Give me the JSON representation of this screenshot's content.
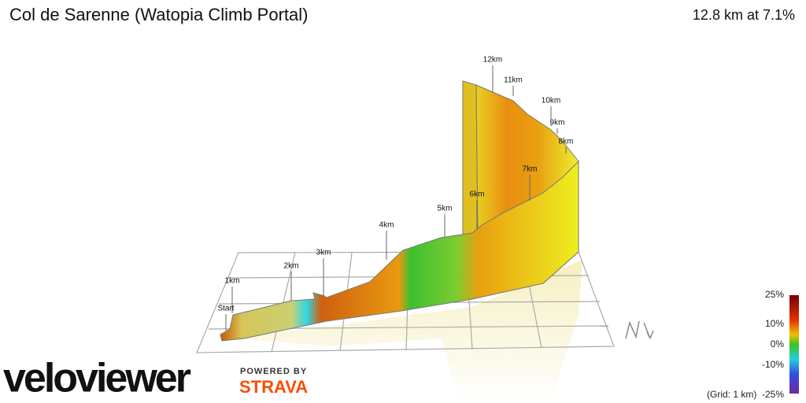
{
  "header": {
    "title": "Col de Sarenne (Watopia Climb Portal)",
    "summary": "12.8 km at 7.1%"
  },
  "markers": [
    "Start",
    "1km",
    "2km",
    "3km",
    "4km",
    "5km",
    "6km",
    "7km",
    "8km",
    "9km",
    "10km",
    "11km",
    "12km"
  ],
  "legend": {
    "labels": [
      "25%",
      "10%",
      "0%",
      "-10%",
      "-25%"
    ],
    "note": "(Grid: 1 km)"
  },
  "branding": {
    "logo": "veloviewer",
    "powered_by": "POWERED BY",
    "partner": "STRAVA"
  }
}
